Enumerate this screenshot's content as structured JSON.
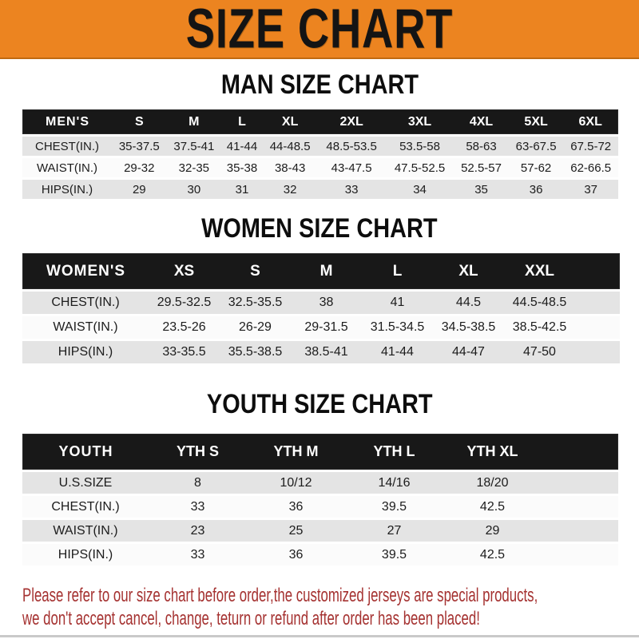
{
  "banner": {
    "title": "SIZE CHART"
  },
  "sections": [
    {
      "key": "men",
      "heading": "MAN SIZE CHART",
      "header_label": "MEN'S",
      "columns": [
        "S",
        "M",
        "L",
        "XL",
        "2XL",
        "3XL",
        "4XL",
        "5XL",
        "6XL"
      ],
      "rows": [
        {
          "label": "CHEST(IN.)",
          "values": [
            "35-37.5",
            "37.5-41",
            "41-44",
            "44-48.5",
            "48.5-53.5",
            "53.5-58",
            "58-63",
            "63-67.5",
            "67.5-72"
          ]
        },
        {
          "label": "WAIST(IN.)",
          "values": [
            "29-32",
            "32-35",
            "35-38",
            "38-43",
            "43-47.5",
            "47.5-52.5",
            "52.5-57",
            "57-62",
            "62-66.5"
          ]
        },
        {
          "label": "HIPS(IN.)",
          "values": [
            "29",
            "30",
            "31",
            "32",
            "33",
            "34",
            "35",
            "36",
            "37"
          ]
        }
      ]
    },
    {
      "key": "women",
      "heading": "WOMEN SIZE CHART",
      "header_label": "WOMEN'S",
      "columns": [
        "XS",
        "S",
        "M",
        "L",
        "XL",
        "XXL"
      ],
      "rows": [
        {
          "label": "CHEST(IN.)",
          "values": [
            "29.5-32.5",
            "32.5-35.5",
            "38",
            "41",
            "44.5",
            "44.5-48.5"
          ]
        },
        {
          "label": "WAIST(IN.)",
          "values": [
            "23.5-26",
            "26-29",
            "29-31.5",
            "31.5-34.5",
            "34.5-38.5",
            "38.5-42.5"
          ]
        },
        {
          "label": "HIPS(IN.)",
          "values": [
            "33-35.5",
            "35.5-38.5",
            "38.5-41",
            "41-44",
            "44-47",
            "47-50"
          ]
        }
      ]
    },
    {
      "key": "youth",
      "heading": "YOUTH SIZE CHART",
      "header_label": "YOUTH",
      "columns": [
        "YTH S",
        "YTH M",
        "YTH L",
        "YTH XL"
      ],
      "rows": [
        {
          "label": "U.S.SIZE",
          "values": [
            "8",
            "10/12",
            "14/16",
            "18/20"
          ]
        },
        {
          "label": "CHEST(IN.)",
          "values": [
            "33",
            "36",
            "39.5",
            "42.5"
          ]
        },
        {
          "label": "WAIST(IN.)",
          "values": [
            "23",
            "25",
            "27",
            "29"
          ]
        },
        {
          "label": "HIPS(IN.)",
          "values": [
            "33",
            "36",
            "39.5",
            "42.5"
          ]
        }
      ]
    }
  ],
  "footer": {
    "line1": "Please refer to our size chart before order,the customized jerseys are special products,",
    "line2": "we don't accept cancel, change, teturn or refund after order has been placed!"
  },
  "colors": {
    "banner_bg": "#EC8420",
    "banner_border": "#C06A10",
    "header_bar_bg": "#181818",
    "header_bar_text": "#FFFFFF",
    "row_shade": "#E4E4E4",
    "row_plain": "#FBFBFB",
    "heading_text": "#0D0D0D",
    "note_text": "#A53231"
  }
}
